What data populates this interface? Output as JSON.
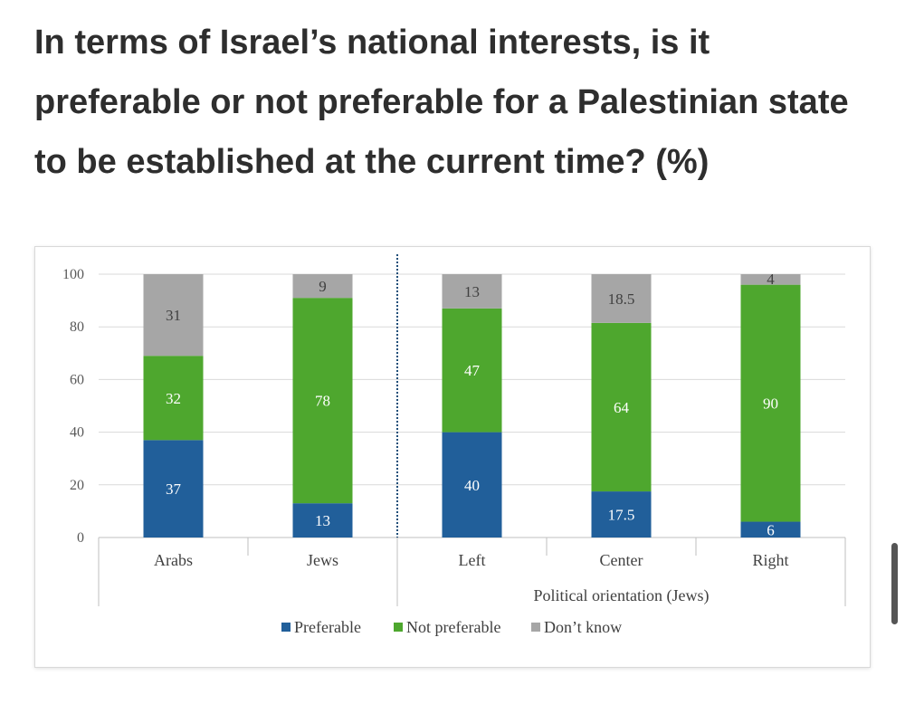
{
  "headline": "In terms of Israel’s national interests, is it preferable or not preferable for a Palestinian state to be established at the current time? (%)",
  "chart_data": {
    "type": "bar",
    "stacked": true,
    "categories": [
      "Arabs",
      "Jews",
      "Left",
      "Center",
      "Right"
    ],
    "group_label": "Political orientation (Jews)",
    "series": [
      {
        "name": "Preferable",
        "color": "#215f9a",
        "values": [
          37,
          13,
          40,
          17.5,
          6
        ]
      },
      {
        "name": "Not preferable",
        "color": "#4ea72e",
        "values": [
          32,
          78,
          47,
          64,
          90
        ]
      },
      {
        "name": "Don’t know",
        "color": "#a6a6a6",
        "values": [
          31,
          9,
          13,
          18.5,
          4
        ]
      }
    ],
    "data_labels": [
      [
        "37",
        "13",
        "40",
        "17.5",
        "6"
      ],
      [
        "32",
        "78",
        "47",
        "64",
        "90"
      ],
      [
        "31",
        "9",
        "13",
        "18.5",
        "4"
      ]
    ],
    "yticks": [
      "0",
      "20",
      "40",
      "60",
      "80",
      "100"
    ],
    "ylim": [
      0,
      100
    ],
    "grid": true,
    "legend_position": "bottom"
  }
}
